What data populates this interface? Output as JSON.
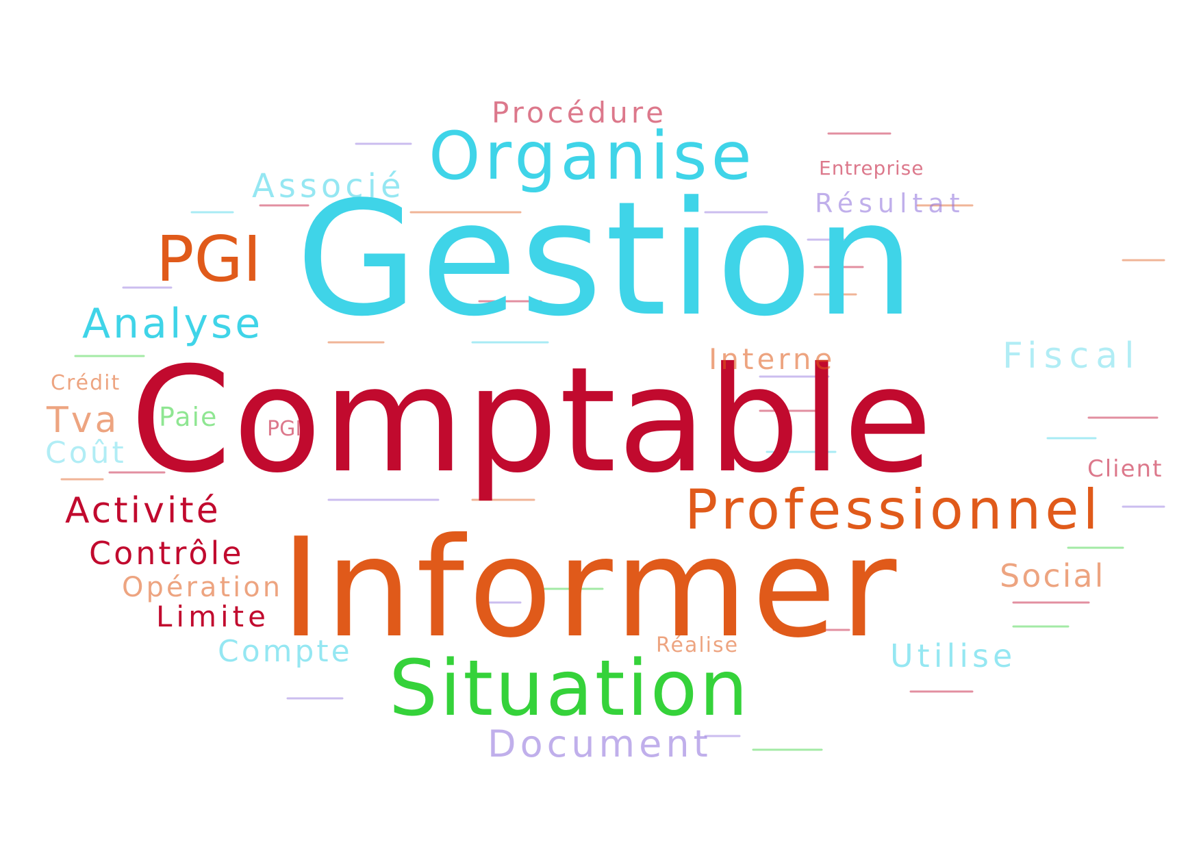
{
  "words": {
    "gestion": "Gestion",
    "comptable": "Comptable",
    "informer": "Informer",
    "situation": "Situation",
    "organise": "Organise",
    "professionnel": "Professionnel",
    "pgi_big": "PGI",
    "analyse": "Analyse",
    "activite": "Activité",
    "controle": "Contrôle",
    "operation": "Opération",
    "limite": "Limite",
    "compte": "Compte",
    "social": "Social",
    "utilise": "Utilise",
    "document": "Document",
    "associe": "Associé",
    "procedure": "Procédure",
    "interne": "Interne",
    "fiscal": "Fiscal",
    "tva": "Tva",
    "cout": "Coût",
    "paie": "Paie",
    "pgi_small": "PGI",
    "resultat": "Résultat",
    "client": "Client",
    "credit": "Crédit",
    "entreprise": "Entreprise",
    "realise": "Réalise"
  },
  "colors": {
    "red": "#c10a2e",
    "orange": "#e05a1a",
    "cyan": "#3fd4e8",
    "green": "#35d23a",
    "purple": "#8d6fdc"
  }
}
